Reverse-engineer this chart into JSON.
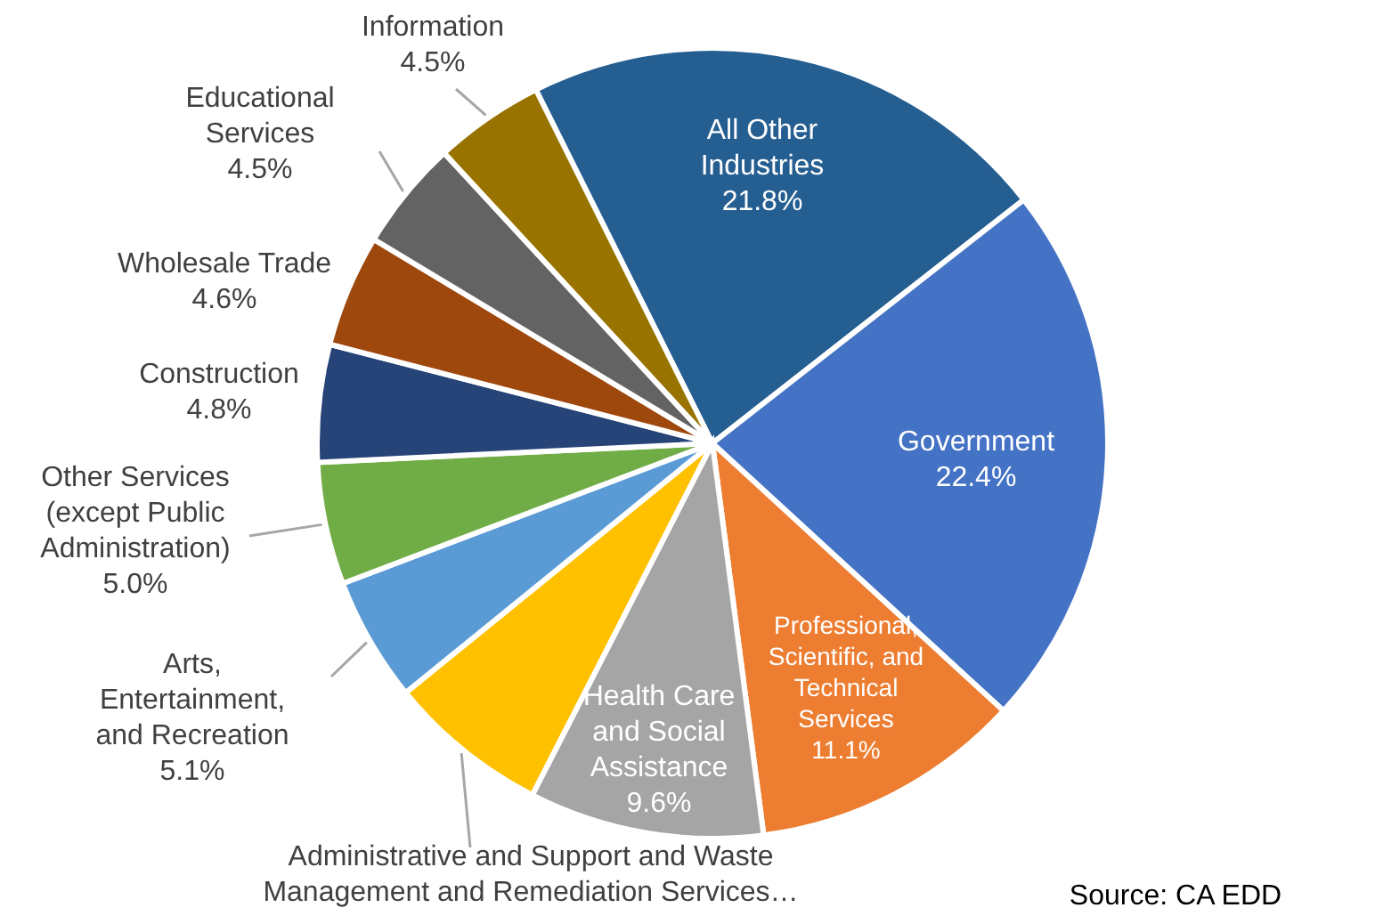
{
  "chart_data": {
    "type": "pie",
    "categories": [
      "All Other Industries",
      "Government",
      "Professional, Scientific, and Technical Services",
      "Health Care and Social Assistance",
      "Administrative and Support and Waste Management and Remediation Services…",
      "Arts, Entertainment, and Recreation",
      "Other Services (except Public Administration)",
      "Construction",
      "Wholesale Trade",
      "Educational Services",
      "Information"
    ],
    "values": [
      21.8,
      22.4,
      11.1,
      9.6,
      6.6,
      5.1,
      5.0,
      4.8,
      4.6,
      4.5,
      4.5
    ],
    "value_labels": [
      "21.8%",
      "22.4%",
      "11.1%",
      "9.6%",
      null,
      "5.1%",
      "5.0%",
      "4.8%",
      "4.6%",
      "4.5%",
      "4.5%"
    ],
    "colors": [
      "#255e91",
      "#4472c4",
      "#ed7d31",
      "#a5a5a5",
      "#ffc000",
      "#5b9bd5",
      "#70ad47",
      "#264478",
      "#9e480e",
      "#636363",
      "#997300"
    ],
    "annotations": [
      "Source: CA EDD"
    ]
  }
}
